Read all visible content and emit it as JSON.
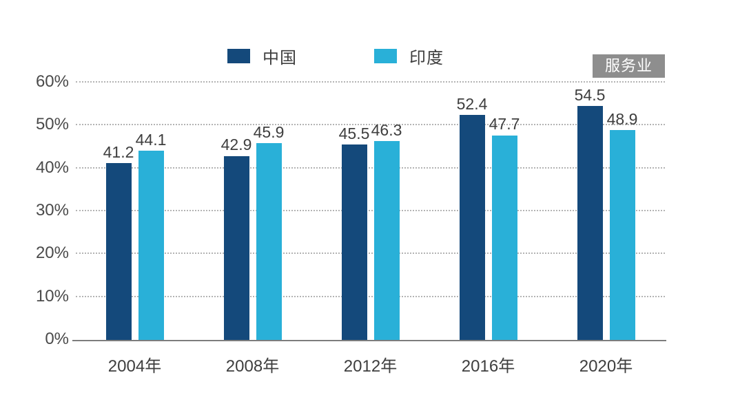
{
  "chart_data": {
    "type": "bar",
    "title": "",
    "badge": "服务业",
    "categories": [
      "2004年",
      "2008年",
      "2012年",
      "2016年",
      "2020年"
    ],
    "series": [
      {
        "name": "中国",
        "color": "#14497b",
        "values": [
          41.2,
          42.9,
          45.5,
          52.4,
          54.5
        ]
      },
      {
        "name": "印度",
        "color": "#29b0d8",
        "values": [
          44.1,
          45.9,
          46.3,
          47.7,
          48.9
        ]
      }
    ],
    "xlabel": "",
    "ylabel": "",
    "ylim": [
      0,
      60
    ],
    "yticks": [
      0,
      10,
      20,
      30,
      40,
      50,
      60
    ],
    "ytick_labels": [
      "0%",
      "10%",
      "20%",
      "30%",
      "40%",
      "50%",
      "60%"
    ],
    "grid": "horizontal-dotted",
    "legend_position": "top-center",
    "value_labels_shown": true
  },
  "colors": {
    "china_bar": "#14497b",
    "india_bar": "#29b0d8",
    "badge_background": "#8e8e8e",
    "badge_text": "#ffffff",
    "axis_text": "#3e3e3e",
    "gridline": "#b3b3b3",
    "axis_line": "#7d7d7d",
    "background": "#ffffff"
  }
}
